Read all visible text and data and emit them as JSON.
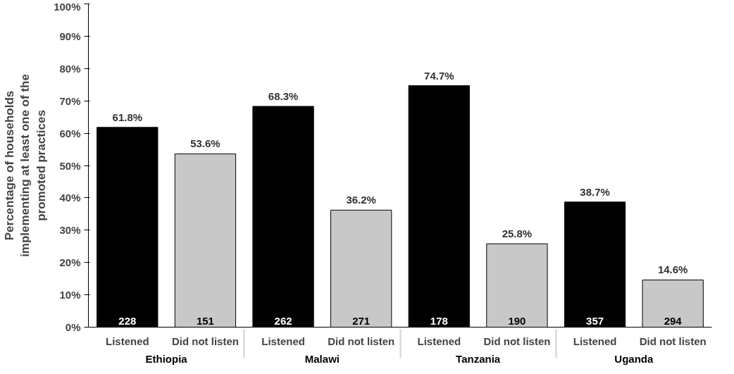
{
  "chart_data": {
    "type": "bar",
    "ylabel": "Percentage of households\nimplementing at least one of the\npromoted practices",
    "categories": [
      "Ethiopia",
      "Malawi",
      "Tanzania",
      "Uganda"
    ],
    "series": [
      {
        "name": "Listened",
        "color": "#000000",
        "values": [
          61.8,
          68.3,
          74.7,
          38.7
        ],
        "value_labels": [
          "61.8%",
          "68.3%",
          "74.7%",
          "38.7%"
        ]
      },
      {
        "name": "Did not listen",
        "color": "#c8c8c8",
        "values": [
          53.6,
          36.2,
          25.8,
          14.6
        ],
        "value_labels": [
          "53.6%",
          "36.2%",
          "25.8%",
          "14.6%"
        ]
      }
    ],
    "ylim": [
      0,
      100
    ],
    "yticks": [
      {
        "value": 0,
        "label": "0%"
      },
      {
        "value": 10,
        "label": "10%"
      },
      {
        "value": 20,
        "label": "20%"
      },
      {
        "value": 30,
        "label": "30%"
      },
      {
        "value": 40,
        "label": "40%"
      },
      {
        "value": 50,
        "label": "50%"
      },
      {
        "value": 60,
        "label": "60%"
      },
      {
        "value": 70,
        "label": "70%"
      },
      {
        "value": 80,
        "label": "80%"
      },
      {
        "value": 90,
        "label": "90%"
      },
      {
        "value": 100,
        "label": "100%"
      }
    ],
    "annotations": [
      "228",
      "151",
      "262",
      "271",
      "178",
      "190",
      "357",
      "294"
    ],
    "grid": false
  }
}
